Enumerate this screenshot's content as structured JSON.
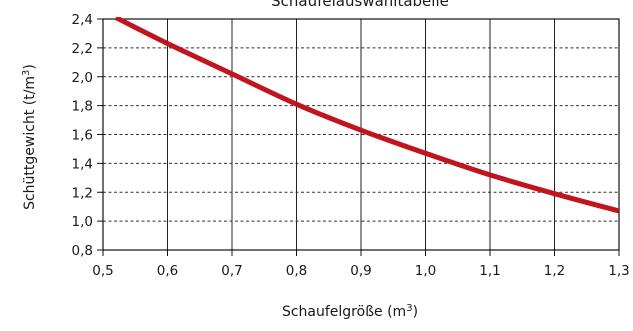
{
  "chart_data": {
    "type": "line",
    "title": "Schaufelauswahltabelle",
    "xlabel": "Schaufelgröße (m",
    "xlabel_sup": "3",
    "xlabel_close": ")",
    "ylabel": "Schüttgewicht (t/m",
    "ylabel_sup": "3",
    "ylabel_close": ")",
    "xlim": [
      0.5,
      1.3
    ],
    "ylim": [
      0.8,
      2.4
    ],
    "x_ticks": [
      0.5,
      0.6,
      0.7,
      0.8,
      0.9,
      1.0,
      1.1,
      1.2,
      1.3
    ],
    "x_tick_labels": [
      "0,5",
      "0,6",
      "0,7",
      "0,8",
      "0,9",
      "1,0",
      "1,1",
      "1,2",
      "1,3"
    ],
    "y_ticks": [
      0.8,
      1.0,
      1.2,
      1.4,
      1.6,
      1.8,
      2.0,
      2.2,
      2.4
    ],
    "y_tick_labels": [
      "0,8",
      "1,0",
      "1,2",
      "1,4",
      "1,6",
      "1,8",
      "2,0",
      "2,2",
      "2,4"
    ],
    "grid": {
      "x": "solid",
      "y": "dashed"
    },
    "series": [
      {
        "color": "#c0141e",
        "x": [
          0.52,
          0.6,
          0.7,
          0.8,
          0.9,
          1.0,
          1.1,
          1.2,
          1.3
        ],
        "y": [
          2.41,
          2.23,
          2.02,
          1.81,
          1.63,
          1.47,
          1.32,
          1.19,
          1.07
        ]
      }
    ]
  }
}
